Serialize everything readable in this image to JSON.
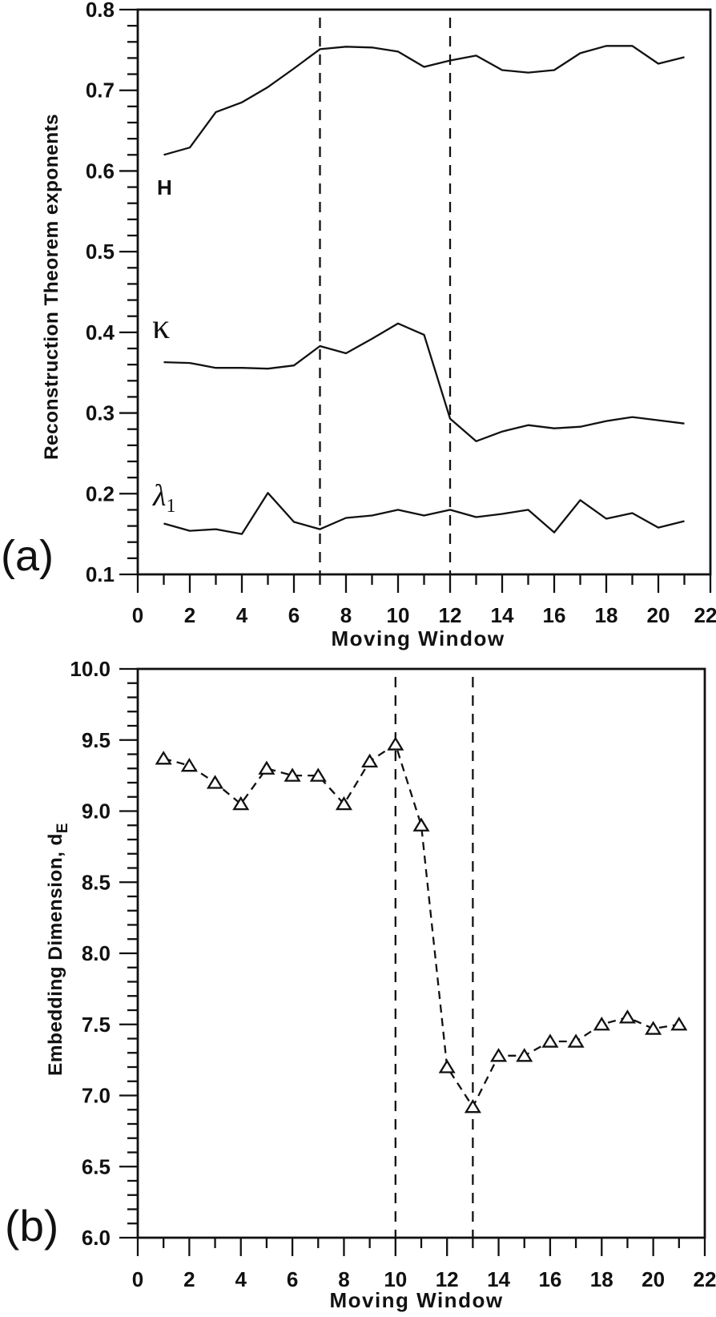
{
  "figure": {
    "background": "#ffffff",
    "ink": "#111111"
  },
  "chart_data": [
    {
      "type": "line",
      "panel_label": "(a)",
      "xlabel": "Moving Window",
      "ylabel": "Reconstruction Theorem exponents",
      "xlim": [
        0,
        22
      ],
      "ylim": [
        0.1,
        0.8
      ],
      "x_ticks_major": 2,
      "x_ticks_minor": 1,
      "y_ticks_major": 0.1,
      "y_ticks_minor": 0.02,
      "y_tick_decimals": 1,
      "grid": false,
      "legend_position": "none",
      "vlines_dashed": [
        7,
        12
      ],
      "x": [
        1,
        2,
        3,
        4,
        5,
        6,
        7,
        8,
        9,
        10,
        11,
        12,
        13,
        14,
        15,
        16,
        17,
        18,
        19,
        20,
        21
      ],
      "series": [
        {
          "name": "H",
          "label": "H",
          "label_at": [
            1.0,
            0.582
          ],
          "line_style": "solid",
          "marker": "none",
          "values": [
            0.62,
            0.629,
            0.673,
            0.685,
            0.704,
            0.727,
            0.751,
            0.754,
            0.753,
            0.748,
            0.729,
            0.737,
            0.743,
            0.725,
            0.722,
            0.725,
            0.746,
            0.755,
            0.755,
            0.733,
            0.741
          ]
        },
        {
          "name": "kappa",
          "label": "κ",
          "label_at": [
            1.0,
            0.403
          ],
          "line_style": "solid",
          "marker": "none",
          "values": [
            0.363,
            0.362,
            0.356,
            0.356,
            0.355,
            0.359,
            0.383,
            0.374,
            0.392,
            0.411,
            0.397,
            0.293,
            0.265,
            0.277,
            0.285,
            0.281,
            0.283,
            0.29,
            0.295,
            0.291,
            0.287
          ]
        },
        {
          "name": "lambda1",
          "label": "λ",
          "label_sub": "1",
          "label_at": [
            1.0,
            0.197
          ],
          "line_style": "solid",
          "marker": "none",
          "values": [
            0.163,
            0.154,
            0.156,
            0.15,
            0.201,
            0.165,
            0.156,
            0.17,
            0.173,
            0.18,
            0.173,
            0.18,
            0.171,
            0.175,
            0.18,
            0.152,
            0.192,
            0.169,
            0.176,
            0.158,
            0.166
          ]
        }
      ]
    },
    {
      "type": "line",
      "panel_label": "(b)",
      "xlabel": "Moving Window",
      "ylabel": "Embedding Dimension, d",
      "ylabel_sub": "E",
      "xlim": [
        0,
        22
      ],
      "ylim": [
        6.0,
        10.0
      ],
      "x_ticks_major": 2,
      "x_ticks_minor": 1,
      "y_ticks_major": 0.5,
      "y_ticks_minor": 0.1,
      "y_tick_decimals": 1,
      "grid": false,
      "legend_position": "none",
      "vlines_dashed": [
        10,
        13
      ],
      "x": [
        1,
        2,
        3,
        4,
        5,
        6,
        7,
        8,
        9,
        10,
        11,
        12,
        13,
        14,
        15,
        16,
        17,
        18,
        19,
        20,
        21
      ],
      "series": [
        {
          "name": "dE",
          "label": "",
          "line_style": "dashed",
          "marker": "triangle-up",
          "marker_fill": "#ffffff",
          "values": [
            9.37,
            9.32,
            9.2,
            9.05,
            9.3,
            9.25,
            9.25,
            9.05,
            9.35,
            9.47,
            8.9,
            7.2,
            6.92,
            7.28,
            7.28,
            7.38,
            7.38,
            7.5,
            7.55,
            7.47,
            7.5
          ]
        }
      ]
    }
  ]
}
